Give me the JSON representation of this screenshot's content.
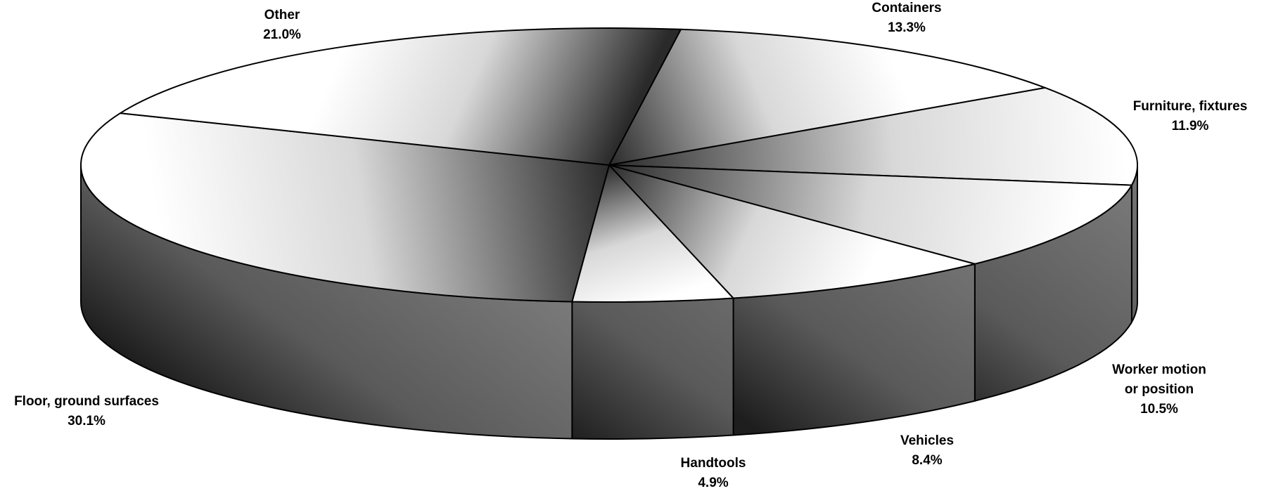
{
  "chart_data": {
    "type": "pie",
    "title": "",
    "style": "3d",
    "slices": [
      {
        "label": [
          "Containers"
        ],
        "value_label": "13.3%",
        "value": 13.3,
        "anchor": "middle"
      },
      {
        "label": [
          "Furniture, fixtures"
        ],
        "value_label": "11.9%",
        "value": 11.9,
        "anchor": "middle"
      },
      {
        "label": [
          "Worker motion",
          "or position"
        ],
        "value_label": "10.5%",
        "value": 10.5,
        "anchor": "middle"
      },
      {
        "label": [
          "Vehicles"
        ],
        "value_label": "8.4%",
        "value": 8.4,
        "anchor": "middle"
      },
      {
        "label": [
          "Handtools"
        ],
        "value_label": "4.9%",
        "value": 4.9,
        "anchor": "middle"
      },
      {
        "label": [
          "Floor, ground surfaces"
        ],
        "value_label": "30.1%",
        "value": 30.1,
        "anchor": "middle"
      },
      {
        "label": [
          "Other"
        ],
        "value_label": "21.0%",
        "value": 21.0,
        "anchor": "middle"
      }
    ],
    "legend": "none",
    "colors": {
      "top_light": "#ffffff",
      "top_dark": "#2a2a2a",
      "side_mid": "#808080",
      "side_dark": "#1e1e1e",
      "outline": "#000000"
    }
  }
}
